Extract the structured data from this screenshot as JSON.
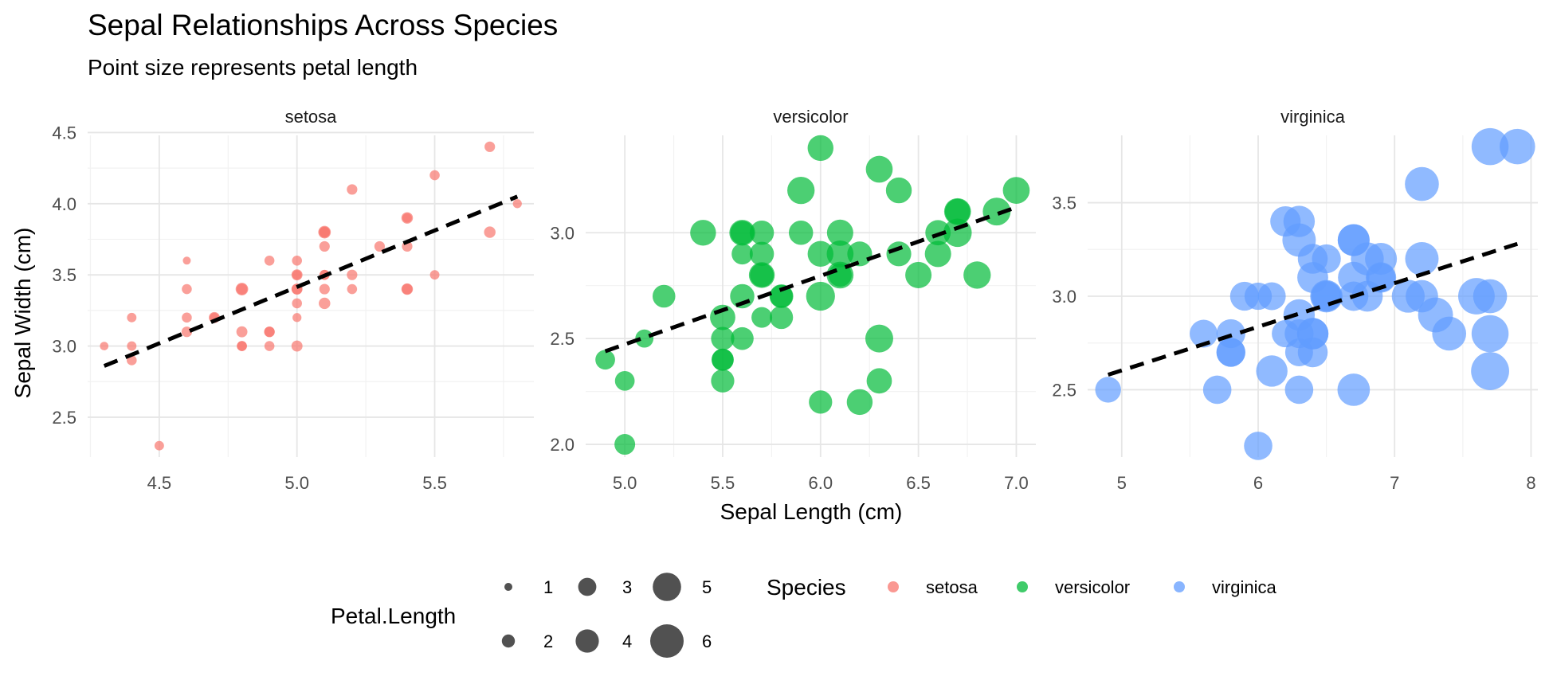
{
  "chart_data": {
    "type": "scatter",
    "title": "Sepal Relationships Across Species",
    "subtitle": "Point size represents petal length",
    "xlabel": "Sepal Length (cm)",
    "ylabel": "Sepal Width (cm)",
    "grid": true,
    "legend_placement": "bottom",
    "colors": {
      "setosa": "#F8766D",
      "versicolor": "#00BA38",
      "virginica": "#619CFF"
    },
    "trend_line": {
      "color": "#000000",
      "style": "dashed"
    },
    "size_legend": {
      "title": "Petal.Length",
      "values": [
        1,
        2,
        3,
        4,
        5,
        6
      ],
      "labels": [
        "1",
        "2",
        "3",
        "4",
        "5",
        "6"
      ]
    },
    "color_legend": {
      "title": "Species",
      "entries": [
        "setosa",
        "versicolor",
        "virginica"
      ]
    },
    "panels": [
      {
        "name": "setosa",
        "color": "#F8766D",
        "xlim": [
          4.24,
          5.86
        ],
        "ylim": [
          2.22,
          4.48
        ],
        "xticks": [
          4.5,
          5.0,
          5.5
        ],
        "xtick_labels": [
          "4.5",
          "5.0",
          "5.5"
        ],
        "yticks": [
          2.5,
          3.0,
          3.5,
          4.0,
          4.5
        ],
        "ytick_labels": [
          "2.5",
          "3.0",
          "3.5",
          "4.0",
          "4.5"
        ],
        "trend": {
          "x": [
            4.3,
            5.8
          ],
          "y": [
            2.86,
            4.05
          ]
        },
        "points": [
          {
            "x": 5.1,
            "y": 3.5,
            "petal_length": 1.4
          },
          {
            "x": 4.9,
            "y": 3.0,
            "petal_length": 1.4
          },
          {
            "x": 4.7,
            "y": 3.2,
            "petal_length": 1.3
          },
          {
            "x": 4.6,
            "y": 3.1,
            "petal_length": 1.5
          },
          {
            "x": 5.0,
            "y": 3.6,
            "petal_length": 1.4
          },
          {
            "x": 5.4,
            "y": 3.9,
            "petal_length": 1.7
          },
          {
            "x": 4.6,
            "y": 3.4,
            "petal_length": 1.4
          },
          {
            "x": 5.0,
            "y": 3.4,
            "petal_length": 1.5
          },
          {
            "x": 4.4,
            "y": 2.9,
            "petal_length": 1.4
          },
          {
            "x": 4.9,
            "y": 3.1,
            "petal_length": 1.5
          },
          {
            "x": 5.4,
            "y": 3.7,
            "petal_length": 1.5
          },
          {
            "x": 4.8,
            "y": 3.4,
            "petal_length": 1.6
          },
          {
            "x": 4.8,
            "y": 3.0,
            "petal_length": 1.4
          },
          {
            "x": 4.3,
            "y": 3.0,
            "petal_length": 1.1
          },
          {
            "x": 5.8,
            "y": 4.0,
            "petal_length": 1.2
          },
          {
            "x": 5.7,
            "y": 4.4,
            "petal_length": 1.5
          },
          {
            "x": 5.4,
            "y": 3.9,
            "petal_length": 1.3
          },
          {
            "x": 5.1,
            "y": 3.5,
            "petal_length": 1.4
          },
          {
            "x": 5.7,
            "y": 3.8,
            "petal_length": 1.7
          },
          {
            "x": 5.1,
            "y": 3.8,
            "petal_length": 1.5
          },
          {
            "x": 5.4,
            "y": 3.4,
            "petal_length": 1.7
          },
          {
            "x": 5.1,
            "y": 3.7,
            "petal_length": 1.5
          },
          {
            "x": 4.6,
            "y": 3.6,
            "petal_length": 1.0
          },
          {
            "x": 5.1,
            "y": 3.3,
            "petal_length": 1.7
          },
          {
            "x": 4.8,
            "y": 3.4,
            "petal_length": 1.9
          },
          {
            "x": 5.0,
            "y": 3.0,
            "petal_length": 1.6
          },
          {
            "x": 5.0,
            "y": 3.4,
            "petal_length": 1.6
          },
          {
            "x": 5.2,
            "y": 3.5,
            "petal_length": 1.5
          },
          {
            "x": 5.2,
            "y": 3.4,
            "petal_length": 1.4
          },
          {
            "x": 4.7,
            "y": 3.2,
            "petal_length": 1.6
          },
          {
            "x": 4.8,
            "y": 3.1,
            "petal_length": 1.6
          },
          {
            "x": 5.4,
            "y": 3.4,
            "petal_length": 1.5
          },
          {
            "x": 5.2,
            "y": 4.1,
            "petal_length": 1.5
          },
          {
            "x": 5.5,
            "y": 4.2,
            "petal_length": 1.4
          },
          {
            "x": 4.9,
            "y": 3.1,
            "petal_length": 1.5
          },
          {
            "x": 5.0,
            "y": 3.2,
            "petal_length": 1.2
          },
          {
            "x": 5.5,
            "y": 3.5,
            "petal_length": 1.3
          },
          {
            "x": 4.9,
            "y": 3.6,
            "petal_length": 1.4
          },
          {
            "x": 4.4,
            "y": 3.0,
            "petal_length": 1.3
          },
          {
            "x": 5.1,
            "y": 3.4,
            "petal_length": 1.5
          },
          {
            "x": 5.0,
            "y": 3.5,
            "petal_length": 1.3
          },
          {
            "x": 4.5,
            "y": 2.3,
            "petal_length": 1.3
          },
          {
            "x": 4.4,
            "y": 3.2,
            "petal_length": 1.3
          },
          {
            "x": 5.0,
            "y": 3.5,
            "petal_length": 1.6
          },
          {
            "x": 5.1,
            "y": 3.8,
            "petal_length": 1.9
          },
          {
            "x": 4.8,
            "y": 3.0,
            "petal_length": 1.4
          },
          {
            "x": 5.1,
            "y": 3.8,
            "petal_length": 1.6
          },
          {
            "x": 4.6,
            "y": 3.2,
            "petal_length": 1.4
          },
          {
            "x": 5.3,
            "y": 3.7,
            "petal_length": 1.5
          },
          {
            "x": 5.0,
            "y": 3.3,
            "petal_length": 1.4
          }
        ]
      },
      {
        "name": "versicolor",
        "color": "#00BA38",
        "xlim": [
          4.8,
          7.1
        ],
        "ylim": [
          1.94,
          3.46
        ],
        "xticks": [
          5.0,
          5.5,
          6.0,
          6.5,
          7.0
        ],
        "xtick_labels": [
          "5.0",
          "5.5",
          "6.0",
          "6.5",
          "7.0"
        ],
        "yticks": [
          2.0,
          2.5,
          3.0
        ],
        "ytick_labels": [
          "2.0",
          "2.5",
          "3.0"
        ],
        "trend": {
          "x": [
            4.9,
            7.0
          ],
          "y": [
            2.44,
            3.12
          ]
        },
        "points": [
          {
            "x": 7.0,
            "y": 3.2,
            "petal_length": 4.7
          },
          {
            "x": 6.4,
            "y": 3.2,
            "petal_length": 4.5
          },
          {
            "x": 6.9,
            "y": 3.1,
            "petal_length": 4.9
          },
          {
            "x": 5.5,
            "y": 2.3,
            "petal_length": 4.0
          },
          {
            "x": 6.5,
            "y": 2.8,
            "petal_length": 4.6
          },
          {
            "x": 5.7,
            "y": 2.8,
            "petal_length": 4.5
          },
          {
            "x": 6.3,
            "y": 3.3,
            "petal_length": 4.7
          },
          {
            "x": 4.9,
            "y": 2.4,
            "petal_length": 3.3
          },
          {
            "x": 6.6,
            "y": 2.9,
            "petal_length": 4.6
          },
          {
            "x": 5.2,
            "y": 2.7,
            "petal_length": 3.9
          },
          {
            "x": 5.0,
            "y": 2.0,
            "petal_length": 3.5
          },
          {
            "x": 5.9,
            "y": 3.0,
            "petal_length": 4.2
          },
          {
            "x": 6.0,
            "y": 2.2,
            "petal_length": 4.0
          },
          {
            "x": 6.1,
            "y": 2.9,
            "petal_length": 4.7
          },
          {
            "x": 5.6,
            "y": 2.9,
            "petal_length": 3.6
          },
          {
            "x": 6.7,
            "y": 3.1,
            "petal_length": 4.4
          },
          {
            "x": 5.6,
            "y": 3.0,
            "petal_length": 4.5
          },
          {
            "x": 5.8,
            "y": 2.7,
            "petal_length": 4.1
          },
          {
            "x": 6.2,
            "y": 2.2,
            "petal_length": 4.5
          },
          {
            "x": 5.6,
            "y": 2.5,
            "petal_length": 3.9
          },
          {
            "x": 5.9,
            "y": 3.2,
            "petal_length": 4.8
          },
          {
            "x": 6.1,
            "y": 2.8,
            "petal_length": 4.0
          },
          {
            "x": 6.3,
            "y": 2.5,
            "petal_length": 4.9
          },
          {
            "x": 6.1,
            "y": 2.8,
            "petal_length": 4.7
          },
          {
            "x": 6.4,
            "y": 2.9,
            "petal_length": 4.3
          },
          {
            "x": 6.6,
            "y": 3.0,
            "petal_length": 4.4
          },
          {
            "x": 6.8,
            "y": 2.8,
            "petal_length": 4.8
          },
          {
            "x": 6.7,
            "y": 3.0,
            "petal_length": 5.0
          },
          {
            "x": 6.0,
            "y": 2.9,
            "petal_length": 4.5
          },
          {
            "x": 5.7,
            "y": 2.6,
            "petal_length": 3.5
          },
          {
            "x": 5.5,
            "y": 2.4,
            "petal_length": 3.8
          },
          {
            "x": 5.5,
            "y": 2.4,
            "petal_length": 3.7
          },
          {
            "x": 5.8,
            "y": 2.7,
            "petal_length": 3.9
          },
          {
            "x": 6.0,
            "y": 2.7,
            "petal_length": 5.1
          },
          {
            "x": 5.4,
            "y": 3.0,
            "petal_length": 4.5
          },
          {
            "x": 6.0,
            "y": 3.4,
            "petal_length": 4.5
          },
          {
            "x": 6.7,
            "y": 3.1,
            "petal_length": 4.7
          },
          {
            "x": 6.3,
            "y": 2.3,
            "petal_length": 4.4
          },
          {
            "x": 5.6,
            "y": 3.0,
            "petal_length": 4.1
          },
          {
            "x": 5.5,
            "y": 2.5,
            "petal_length": 4.0
          },
          {
            "x": 5.5,
            "y": 2.6,
            "petal_length": 4.4
          },
          {
            "x": 6.1,
            "y": 3.0,
            "petal_length": 4.6
          },
          {
            "x": 5.8,
            "y": 2.6,
            "petal_length": 4.0
          },
          {
            "x": 5.0,
            "y": 2.3,
            "petal_length": 3.3
          },
          {
            "x": 5.6,
            "y": 2.7,
            "petal_length": 4.2
          },
          {
            "x": 5.7,
            "y": 3.0,
            "petal_length": 4.2
          },
          {
            "x": 5.7,
            "y": 2.9,
            "petal_length": 4.2
          },
          {
            "x": 6.2,
            "y": 2.9,
            "petal_length": 4.3
          },
          {
            "x": 5.1,
            "y": 2.5,
            "petal_length": 3.0
          },
          {
            "x": 5.7,
            "y": 2.8,
            "petal_length": 4.1
          }
        ]
      },
      {
        "name": "virginica",
        "color": "#619CFF",
        "xlim": [
          4.75,
          8.05
        ],
        "ylim": [
          2.14,
          3.86
        ],
        "xticks": [
          5,
          6,
          7,
          8
        ],
        "xtick_labels": [
          "5",
          "6",
          "7",
          "8"
        ],
        "yticks": [
          2.5,
          3.0,
          3.5
        ],
        "ytick_labels": [
          "2.5",
          "3.0",
          "3.5"
        ],
        "trend": {
          "x": [
            4.9,
            7.9
          ],
          "y": [
            2.58,
            3.28
          ]
        },
        "points": [
          {
            "x": 6.3,
            "y": 3.3,
            "petal_length": 6.0
          },
          {
            "x": 5.8,
            "y": 2.7,
            "petal_length": 5.1
          },
          {
            "x": 7.1,
            "y": 3.0,
            "petal_length": 5.9
          },
          {
            "x": 6.3,
            "y": 2.9,
            "petal_length": 5.6
          },
          {
            "x": 6.5,
            "y": 3.0,
            "petal_length": 5.8
          },
          {
            "x": 7.6,
            "y": 3.0,
            "petal_length": 6.6
          },
          {
            "x": 4.9,
            "y": 2.5,
            "petal_length": 4.5
          },
          {
            "x": 7.3,
            "y": 2.9,
            "petal_length": 6.3
          },
          {
            "x": 6.7,
            "y": 2.5,
            "petal_length": 5.8
          },
          {
            "x": 7.2,
            "y": 3.6,
            "petal_length": 6.1
          },
          {
            "x": 6.5,
            "y": 3.2,
            "petal_length": 5.1
          },
          {
            "x": 6.4,
            "y": 2.7,
            "petal_length": 5.3
          },
          {
            "x": 6.8,
            "y": 3.0,
            "petal_length": 5.5
          },
          {
            "x": 5.7,
            "y": 2.5,
            "petal_length": 5.0
          },
          {
            "x": 5.8,
            "y": 2.8,
            "petal_length": 5.1
          },
          {
            "x": 6.4,
            "y": 3.2,
            "petal_length": 5.3
          },
          {
            "x": 6.5,
            "y": 3.0,
            "petal_length": 5.5
          },
          {
            "x": 7.7,
            "y": 3.8,
            "petal_length": 6.7
          },
          {
            "x": 7.7,
            "y": 2.6,
            "petal_length": 6.9
          },
          {
            "x": 6.0,
            "y": 2.2,
            "petal_length": 5.0
          },
          {
            "x": 6.9,
            "y": 3.2,
            "petal_length": 5.7
          },
          {
            "x": 5.6,
            "y": 2.8,
            "petal_length": 4.9
          },
          {
            "x": 7.7,
            "y": 2.8,
            "petal_length": 6.7
          },
          {
            "x": 6.3,
            "y": 2.7,
            "petal_length": 4.9
          },
          {
            "x": 6.7,
            "y": 3.3,
            "petal_length": 5.7
          },
          {
            "x": 7.2,
            "y": 3.2,
            "petal_length": 6.0
          },
          {
            "x": 6.2,
            "y": 2.8,
            "petal_length": 4.8
          },
          {
            "x": 6.1,
            "y": 3.0,
            "petal_length": 4.9
          },
          {
            "x": 6.4,
            "y": 2.8,
            "petal_length": 5.6
          },
          {
            "x": 7.2,
            "y": 3.0,
            "petal_length": 5.8
          },
          {
            "x": 7.4,
            "y": 2.8,
            "petal_length": 6.1
          },
          {
            "x": 7.9,
            "y": 3.8,
            "petal_length": 6.4
          },
          {
            "x": 6.4,
            "y": 2.8,
            "petal_length": 5.6
          },
          {
            "x": 6.3,
            "y": 2.8,
            "petal_length": 5.1
          },
          {
            "x": 6.1,
            "y": 2.6,
            "petal_length": 5.6
          },
          {
            "x": 7.7,
            "y": 3.0,
            "petal_length": 6.1
          },
          {
            "x": 6.3,
            "y": 3.4,
            "petal_length": 5.6
          },
          {
            "x": 6.4,
            "y": 3.1,
            "petal_length": 5.5
          },
          {
            "x": 6.0,
            "y": 3.0,
            "petal_length": 4.8
          },
          {
            "x": 6.9,
            "y": 3.1,
            "petal_length": 5.4
          },
          {
            "x": 6.7,
            "y": 3.1,
            "petal_length": 5.6
          },
          {
            "x": 6.9,
            "y": 3.1,
            "petal_length": 5.1
          },
          {
            "x": 5.8,
            "y": 2.7,
            "petal_length": 5.1
          },
          {
            "x": 6.8,
            "y": 3.2,
            "petal_length": 5.9
          },
          {
            "x": 6.7,
            "y": 3.3,
            "petal_length": 5.7
          },
          {
            "x": 6.7,
            "y": 3.0,
            "petal_length": 5.2
          },
          {
            "x": 6.3,
            "y": 2.5,
            "petal_length": 5.0
          },
          {
            "x": 6.5,
            "y": 3.0,
            "petal_length": 5.2
          },
          {
            "x": 6.2,
            "y": 3.4,
            "petal_length": 5.4
          },
          {
            "x": 5.9,
            "y": 3.0,
            "petal_length": 5.1
          }
        ]
      }
    ]
  }
}
